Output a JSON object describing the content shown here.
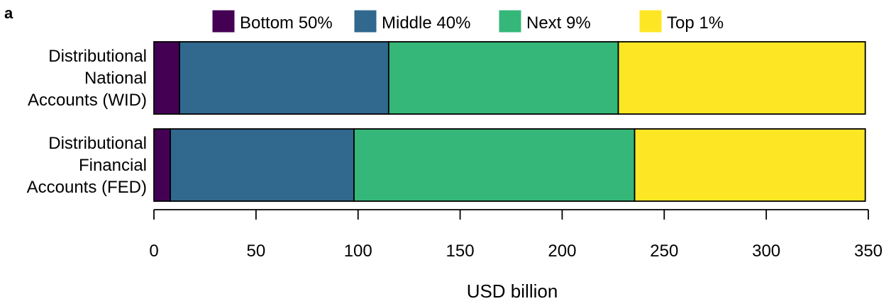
{
  "chart_data": {
    "type": "bar",
    "orientation": "horizontal",
    "stacked": true,
    "panel_label": "a",
    "title": "",
    "xlabel": "USD billion",
    "ylabel": "",
    "xlim": [
      0,
      350
    ],
    "xticks": [
      0,
      50,
      100,
      150,
      200,
      250,
      300,
      350
    ],
    "grid": false,
    "legend_position": "top",
    "categories": [
      [
        "Distributional",
        "National",
        "Accounts (WID)"
      ],
      [
        "Distributional",
        "Financial",
        "Accounts (FED)"
      ]
    ],
    "series": [
      {
        "name": "Bottom 50%",
        "color": "#440154",
        "values": [
          12.5,
          8
        ]
      },
      {
        "name": "Middle 40%",
        "color": "#31688E",
        "values": [
          102.5,
          90
        ]
      },
      {
        "name": "Next 9%",
        "color": "#35B779",
        "values": [
          112.5,
          137.5
        ]
      },
      {
        "name": "Top 1%",
        "color": "#FDE725",
        "values": [
          121,
          113
        ]
      }
    ]
  }
}
